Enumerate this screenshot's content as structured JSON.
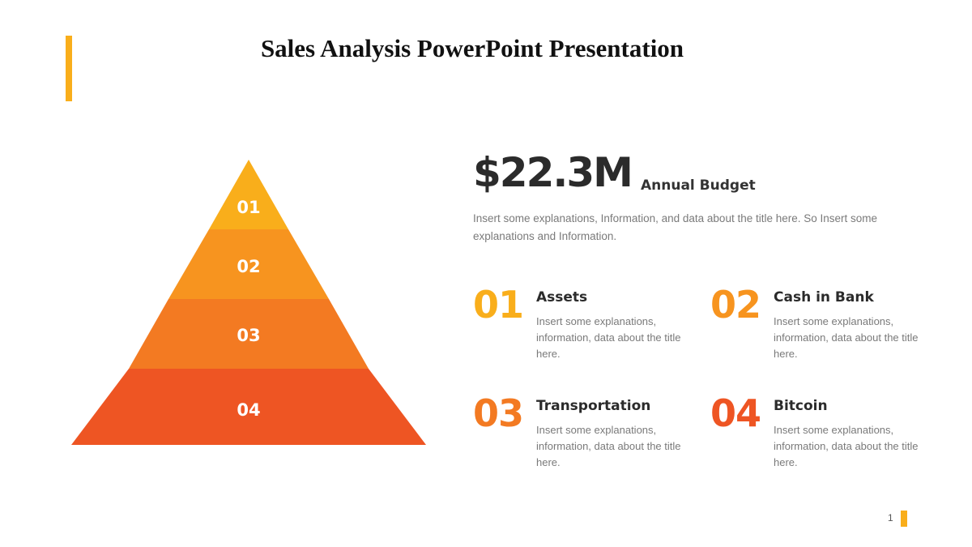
{
  "slide": {
    "title": "Sales Analysis PowerPoint Presentation",
    "page_number": "1",
    "accent_color": "#F9AE1B"
  },
  "pyramid": {
    "levels": [
      {
        "label": "01",
        "color": "#F9AE1B"
      },
      {
        "label": "02",
        "color": "#F7941F"
      },
      {
        "label": "03",
        "color": "#F37A22"
      },
      {
        "label": "04",
        "color": "#EE5523"
      }
    ]
  },
  "budget": {
    "amount": "$22.3M",
    "label": "Annual Budget",
    "description": "Insert some explanations, Information, and data about the title here. So Insert some explanations and Information."
  },
  "items": [
    {
      "number": "01",
      "title": "Assets",
      "description": "Insert some explanations, information, data about the title here.",
      "color": "#F9AE1B"
    },
    {
      "number": "02",
      "title": "Cash in Bank",
      "description": "Insert some explanations, information, data about the title here.",
      "color": "#F7941F"
    },
    {
      "number": "03",
      "title": "Transportation",
      "description": "Insert some explanations, information, data about the title here.",
      "color": "#F37A22"
    },
    {
      "number": "04",
      "title": "Bitcoin",
      "description": "Insert some explanations, information, data about the title here.",
      "color": "#EE5523"
    }
  ]
}
